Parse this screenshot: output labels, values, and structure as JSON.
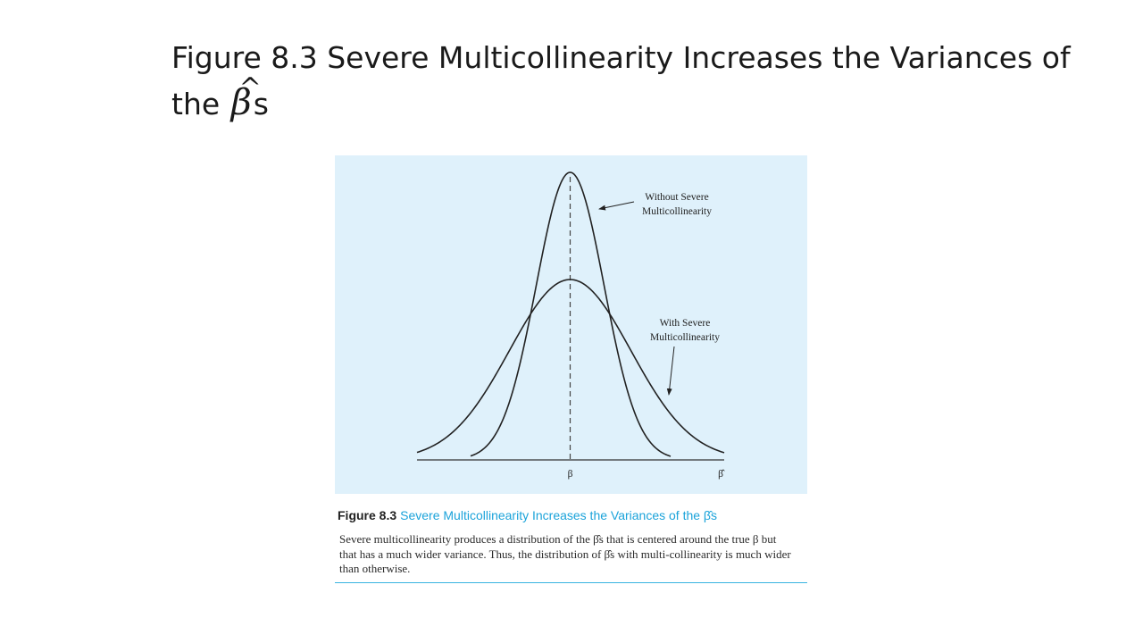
{
  "slide": {
    "title_line1": "Figure 8.3 Severe Multicollinearity Increases the Variances of",
    "title_line2_prefix": "the ",
    "title_symbol": "β",
    "title_hat": "^",
    "title_line2_suffix": "s"
  },
  "figure": {
    "label_without_line1": "Without Severe",
    "label_without_line2": "Multicollinearity",
    "label_with_line1": "With Severe",
    "label_with_line2": "Multicollinearity",
    "axis_center_label": "β",
    "axis_end_label": "β̂",
    "colors": {
      "panel_background": "#dff1fb",
      "curve": "#222222",
      "accent": "#1ba3da"
    }
  },
  "caption": {
    "number": "Figure 8.3",
    "title": "Severe Multicollinearity Increases the Variances of the β̂s",
    "body": "Severe multicollinearity produces a distribution of the β̂s that is centered around the true β but that has a much wider variance. Thus, the distribution of β̂s with multi-collinearity is much wider than otherwise."
  }
}
